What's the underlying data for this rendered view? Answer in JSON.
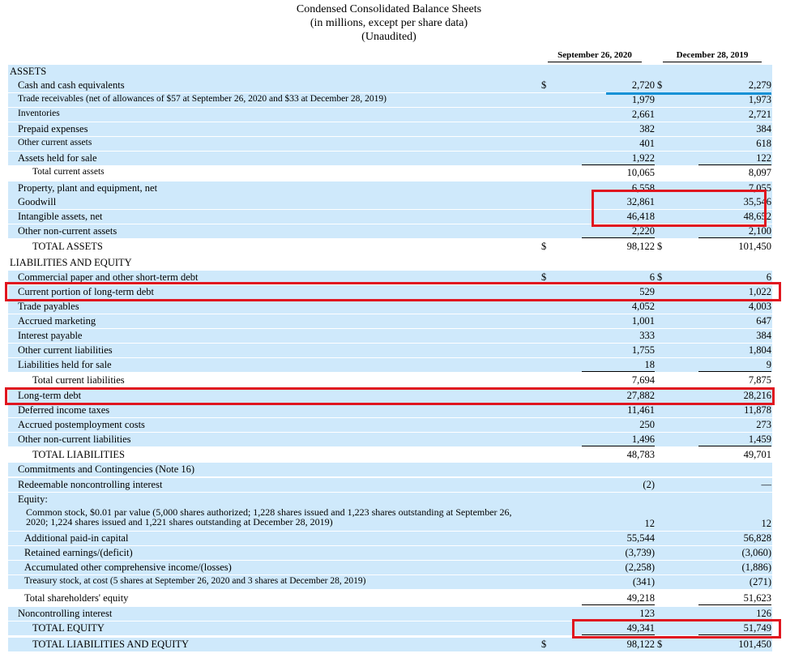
{
  "header": {
    "title": "Condensed Consolidated Balance Sheets",
    "subtitle": "(in millions, except per share data)",
    "note": "(Unaudited)"
  },
  "columns": {
    "col1": "September 26, 2020",
    "col2": "December 28, 2019"
  },
  "rows": [
    {
      "label": "ASSETS",
      "c1": "",
      "c2": ""
    },
    {
      "label": "Cash and cash equivalents",
      "c1": "2,720",
      "c2": "2,279",
      "d1": "$",
      "d2": "$"
    },
    {
      "label": "Trade receivables (net of allowances of $57 at September 26, 2020 and $33 at December 28, 2019)",
      "c1": "1,979",
      "c2": "1,973"
    },
    {
      "label": "Inventories",
      "c1": "2,661",
      "c2": "2,721"
    },
    {
      "label": "Prepaid expenses",
      "c1": "382",
      "c2": "384"
    },
    {
      "label": "Other current assets",
      "c1": "401",
      "c2": "618"
    },
    {
      "label": "Assets held for sale",
      "c1": "1,922",
      "c2": "122"
    },
    {
      "label": "Total current assets",
      "c1": "10,065",
      "c2": "8,097"
    },
    {
      "label": "Property, plant and equipment, net",
      "c1": "6,558",
      "c2": "7,055"
    },
    {
      "label": "Goodwill",
      "c1": "32,861",
      "c2": "35,546"
    },
    {
      "label": "Intangible assets, net",
      "c1": "46,418",
      "c2": "48,652"
    },
    {
      "label": "Other non-current assets",
      "c1": "2,220",
      "c2": "2,100"
    },
    {
      "label": "TOTAL ASSETS",
      "c1": "98,122",
      "c2": "101,450",
      "d1": "$",
      "d2": "$"
    },
    {
      "label": "LIABILITIES AND EQUITY",
      "c1": "",
      "c2": ""
    },
    {
      "label": "Commercial paper and other short-term debt",
      "c1": "6",
      "c2": "6",
      "d1": "$",
      "d2": "$"
    },
    {
      "label": "Current portion of long-term debt",
      "c1": "529",
      "c2": "1,022"
    },
    {
      "label": "Trade payables",
      "c1": "4,052",
      "c2": "4,003"
    },
    {
      "label": "Accrued marketing",
      "c1": "1,001",
      "c2": "647"
    },
    {
      "label": "Interest payable",
      "c1": "333",
      "c2": "384"
    },
    {
      "label": "Other current liabilities",
      "c1": "1,755",
      "c2": "1,804"
    },
    {
      "label": "Liabilities held for sale",
      "c1": "18",
      "c2": "9"
    },
    {
      "label": "Total current liabilities",
      "c1": "7,694",
      "c2": "7,875"
    },
    {
      "label": "Long-term debt",
      "c1": "27,882",
      "c2": "28,216"
    },
    {
      "label": "Deferred income taxes",
      "c1": "11,461",
      "c2": "11,878"
    },
    {
      "label": "Accrued postemployment costs",
      "c1": "250",
      "c2": "273"
    },
    {
      "label": "Other non-current liabilities",
      "c1": "1,496",
      "c2": "1,459"
    },
    {
      "label": "TOTAL LIABILITIES",
      "c1": "48,783",
      "c2": "49,701"
    },
    {
      "label": "Commitments and Contingencies (Note 16)",
      "c1": "",
      "c2": ""
    },
    {
      "label": "Redeemable noncontrolling interest",
      "c1": "(2)",
      "c2": "—"
    },
    {
      "label": "Equity:",
      "c1": "",
      "c2": ""
    },
    {
      "label": "Common stock, $0.01 par value (5,000 shares authorized; 1,228 shares issued and 1,223 shares outstanding at September 26, 2020; 1,224 shares issued and 1,221 shares outstanding at December 28, 2019)",
      "c1": "12",
      "c2": "12"
    },
    {
      "label": "Additional paid-in capital",
      "c1": "55,544",
      "c2": "56,828"
    },
    {
      "label": "Retained earnings/(deficit)",
      "c1": "(3,739)",
      "c2": "(3,060)"
    },
    {
      "label": "Accumulated other comprehensive income/(losses)",
      "c1": "(2,258)",
      "c2": "(1,886)"
    },
    {
      "label": "Treasury stock, at cost (5 shares at September 26, 2020 and 3 shares at December 28, 2019)",
      "c1": "(341)",
      "c2": "(271)"
    },
    {
      "label": "Total shareholders' equity",
      "c1": "49,218",
      "c2": "51,623"
    },
    {
      "label": "Noncontrolling interest",
      "c1": "123",
      "c2": "126"
    },
    {
      "label": "TOTAL EQUITY",
      "c1": "49,341",
      "c2": "51,749"
    },
    {
      "label": "TOTAL LIABILITIES AND EQUITY",
      "c1": "98,122",
      "c2": "101,450",
      "d1": "$",
      "d2": "$"
    }
  ],
  "colors": {
    "row_shade": "#cfe9fb",
    "highlight_box": "#e0161f",
    "highlight_line": "#1591d6"
  }
}
